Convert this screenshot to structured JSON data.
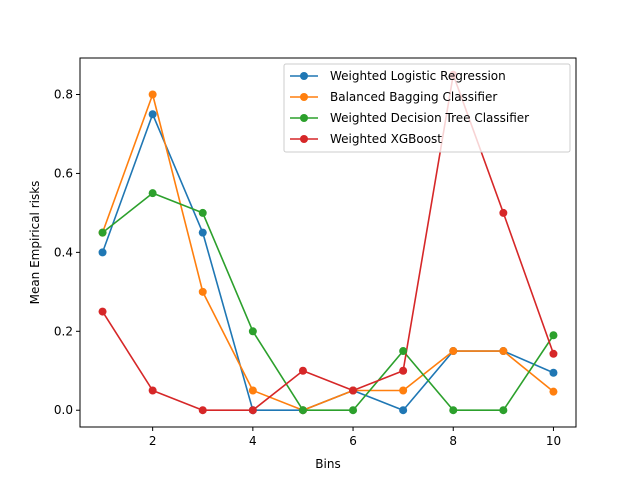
{
  "chart_data": {
    "type": "line",
    "title": "",
    "xlabel": "Bins",
    "ylabel": "Mean Empirical risks",
    "xlim": [
      0.55,
      10.45
    ],
    "ylim": [
      -0.0425,
      0.8925
    ],
    "xticks": [
      2,
      4,
      6,
      8,
      10
    ],
    "yticks": [
      0.0,
      0.2,
      0.4,
      0.6,
      0.8
    ],
    "xtick_labels": [
      "2",
      "4",
      "6",
      "8",
      "10"
    ],
    "ytick_labels": [
      "0.0",
      "0.2",
      "0.4",
      "0.6",
      "0.8"
    ],
    "grid": false,
    "legend_position": "top-right",
    "x": [
      1,
      2,
      3,
      4,
      5,
      6,
      7,
      8,
      9,
      10
    ],
    "series": [
      {
        "name": "Weighted Logistic Regression",
        "color": "#1f77b4",
        "values": [
          0.4,
          0.75,
          0.45,
          0.0,
          0.0,
          0.05,
          0.0,
          0.15,
          0.15,
          0.095
        ]
      },
      {
        "name": "Balanced Bagging Classifier",
        "color": "#ff7f0e",
        "values": [
          0.45,
          0.8,
          0.3,
          0.05,
          0.0,
          0.05,
          0.05,
          0.15,
          0.15,
          0.047
        ]
      },
      {
        "name": "Weighted Decision Tree Classifier",
        "color": "#2ca02c",
        "values": [
          0.45,
          0.55,
          0.5,
          0.2,
          0.0,
          0.0,
          0.15,
          0.0,
          0.0,
          0.19
        ]
      },
      {
        "name": "Weighted XGBoost",
        "color": "#d62728",
        "values": [
          0.25,
          0.05,
          0.0,
          0.0,
          0.1,
          0.05,
          0.1,
          0.85,
          0.5,
          0.143
        ]
      }
    ]
  }
}
